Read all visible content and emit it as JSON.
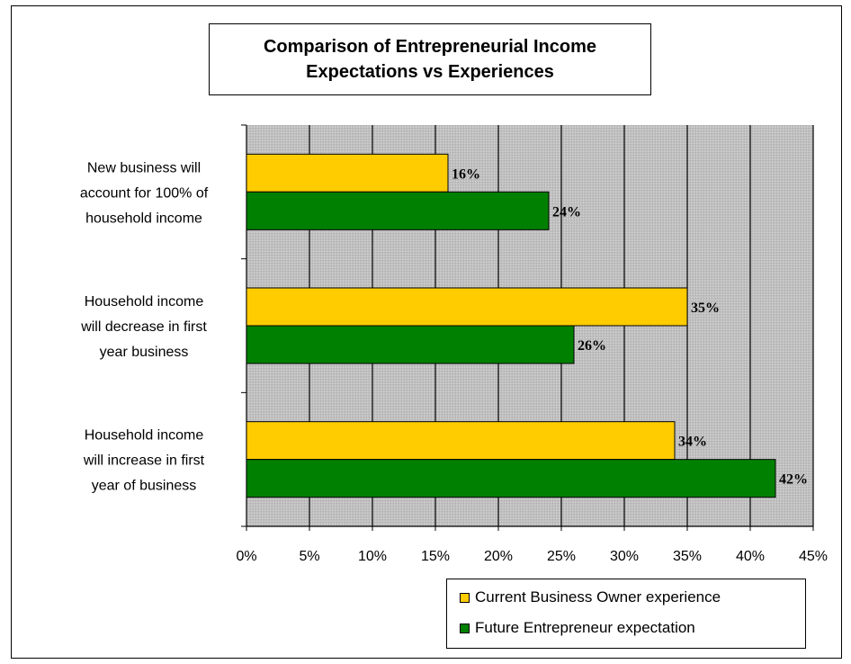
{
  "chart_data": {
    "type": "bar",
    "orientation": "horizontal",
    "title": "Comparison of Entrepreneurial Income Expectations vs Experiences",
    "categories": [
      [
        "New business will",
        "account for 100% of",
        "household income"
      ],
      [
        "Household income",
        "will decrease in first",
        "year business"
      ],
      [
        "Household income",
        "will increase in first",
        "year of business"
      ]
    ],
    "series": [
      {
        "name": "Current Business Owner experience",
        "color": "#FFCC00",
        "values": [
          16,
          35,
          34
        ],
        "labels": [
          "16%",
          "35%",
          "34%"
        ]
      },
      {
        "name": "Future Entrepreneur expectation",
        "color": "#008000",
        "values": [
          24,
          26,
          42
        ],
        "labels": [
          "24%",
          "26%",
          "42%"
        ]
      }
    ],
    "xlim": [
      0,
      45
    ],
    "xticks": [
      "0%",
      "5%",
      "10%",
      "15%",
      "20%",
      "25%",
      "30%",
      "35%",
      "40%",
      "45%"
    ],
    "grid": true,
    "plot_background": "#C0C0C0",
    "legend_position": "bottom-right"
  }
}
